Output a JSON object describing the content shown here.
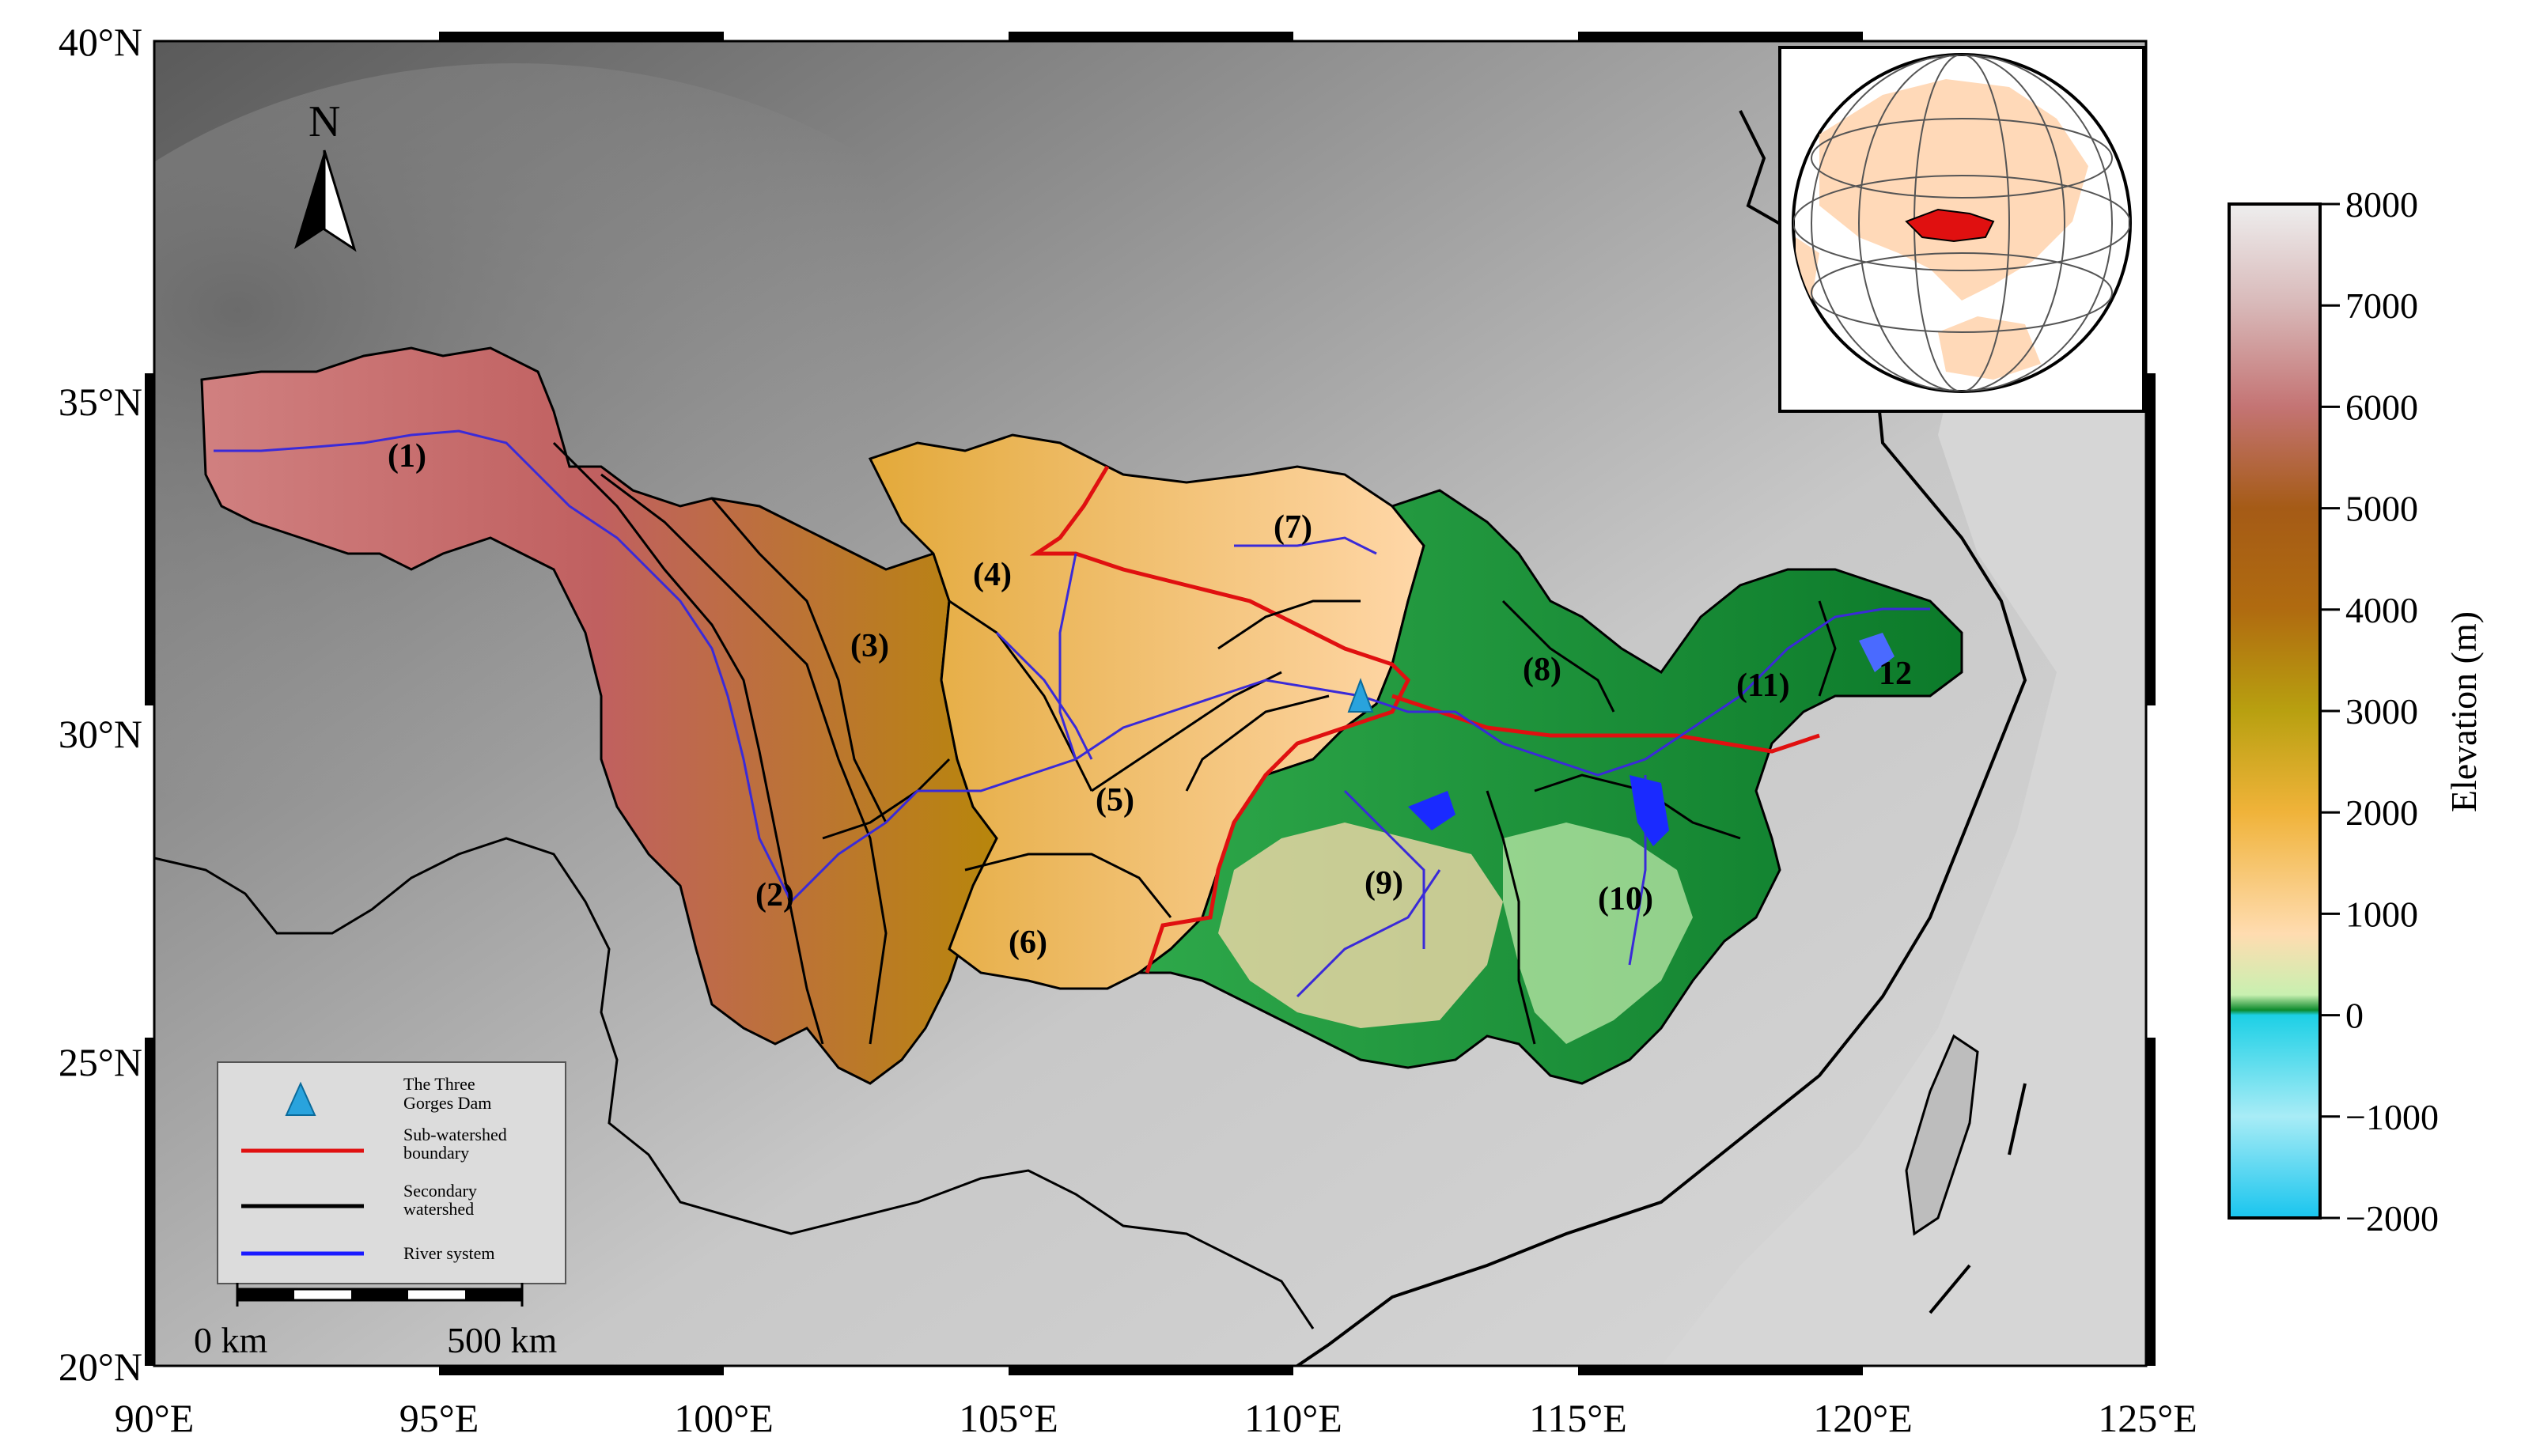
{
  "map": {
    "longitude_labels": [
      "90°E",
      "95°E",
      "100°E",
      "105°E",
      "110°E",
      "115°E",
      "120°E",
      "125°E"
    ],
    "latitude_labels": [
      "40°N",
      "35°N",
      "30°N",
      "25°N",
      "20°N"
    ],
    "north_arrow": "N",
    "sub_basins": [
      "(1)",
      "(2)",
      "(3)",
      "(4)",
      "(5)",
      "(6)",
      "(7)",
      "(8)",
      "(9)",
      "(10)",
      "(11)",
      "12"
    ]
  },
  "legend": {
    "items": [
      {
        "label_line1": "The Three",
        "label_line2": "Gorges Dam",
        "symbol": "triangle-icon",
        "color": "#29a3dd"
      },
      {
        "label_line1": "Sub-watershed",
        "label_line2": "boundary",
        "symbol": "line",
        "color": "#e01010"
      },
      {
        "label_line1": "Secondary",
        "label_line2": "watershed",
        "symbol": "line",
        "color": "#000000"
      },
      {
        "label_line1": "River system",
        "label_line2": "",
        "symbol": "line",
        "color": "#1a1aff"
      }
    ]
  },
  "scale_bar": {
    "start_label": "0 km",
    "end_label": "500 km"
  },
  "colorbar": {
    "title": "Elevation (m)",
    "tick_labels": [
      "8000",
      "7000",
      "6000",
      "5000",
      "4000",
      "3000",
      "2000",
      "1000",
      "0",
      "−1000",
      "−2000"
    ],
    "range": [
      -2000,
      8000
    ]
  },
  "colors": {
    "land_low": "#ffdcb0",
    "land_mid": "#b88a10",
    "land_high": "#c47474",
    "lowland_green": "#0c8a2c",
    "lake_blue": "#1a2aff",
    "sub_boundary": "#e01010",
    "globe_land": "#ffd9b8"
  }
}
